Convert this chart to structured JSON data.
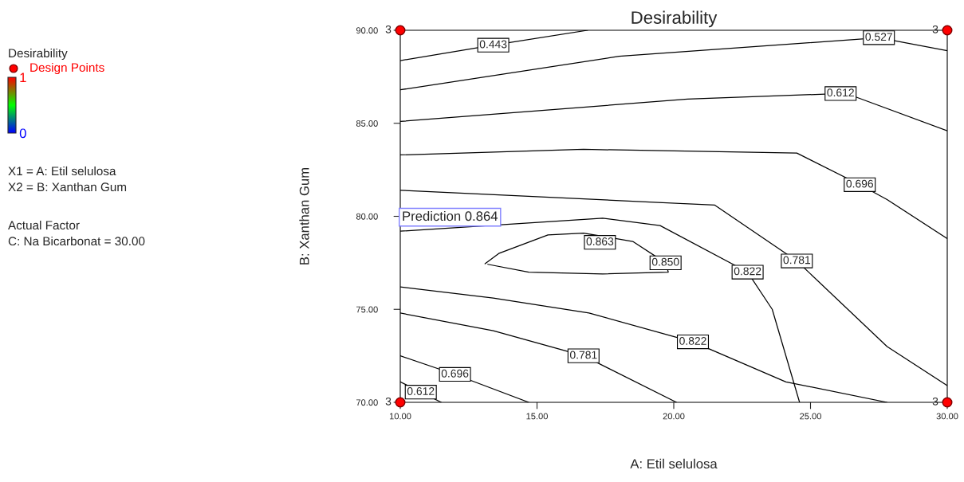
{
  "chart_data": {
    "type": "line",
    "title": "Desirability",
    "xlabel": "A: Etil selulosa",
    "ylabel": "B: Xanthan Gum",
    "xlim": [
      10,
      30
    ],
    "ylim": [
      70,
      90
    ],
    "xticks": [
      {
        "value": 10,
        "label": "10.00"
      },
      {
        "value": 15,
        "label": "15.00"
      },
      {
        "value": 20,
        "label": "20.00"
      },
      {
        "value": 25,
        "label": "25.00"
      },
      {
        "value": 30,
        "label": "30.00"
      }
    ],
    "yticks": [
      {
        "value": 70,
        "label": "70.00"
      },
      {
        "value": 75,
        "label": "75.00"
      },
      {
        "value": 80,
        "label": "80.00"
      },
      {
        "value": 85,
        "label": "85.00"
      },
      {
        "value": 90,
        "label": "90.00"
      }
    ],
    "grid": false,
    "legend": "left",
    "line_style": "solid",
    "legend_title": "Desirability",
    "clim": [
      0,
      1
    ],
    "cticks": [
      0,
      1
    ],
    "series": [
      {
        "name": "0.443",
        "color": "#000000",
        "x": [
          10,
          13.4,
          16.85
        ],
        "values": [
          88.37,
          89.2,
          90
        ]
      },
      {
        "name": "0.527",
        "color": "#000000",
        "x": [
          10,
          18,
          27.5,
          30
        ],
        "values": [
          86.8,
          88.6,
          89.6,
          88.9
        ]
      },
      {
        "name": "0.612",
        "color": "#000000",
        "x": [
          10,
          20.5,
          26.1,
          26.5,
          30
        ],
        "values": [
          85.1,
          86.3,
          86.6,
          86.5,
          84.6
        ]
      },
      {
        "name": "0.696",
        "color": "#000000",
        "x": [
          10,
          16.7,
          24.5,
          26.8,
          27.8,
          30
        ],
        "values": [
          83.3,
          83.6,
          83.4,
          81.7,
          80.9,
          78.8
        ]
      },
      {
        "name": "0.781",
        "color": "#000000",
        "x": [
          10,
          21.5,
          24.5,
          27.8,
          30
        ],
        "values": [
          81.4,
          80.6,
          77.6,
          73.0,
          70.9
        ]
      },
      {
        "name": "0.822",
        "color": "#000000",
        "x": [
          10,
          17.4,
          19.5,
          22.7,
          23.6,
          24.6
        ],
        "values": [
          79.2,
          79.9,
          79.5,
          77.0,
          75.0,
          70
        ]
      },
      {
        "name": "0.850",
        "color": "#000000",
        "x": [
          13.1,
          13.6,
          15.4,
          16.7,
          18.5,
          19.7,
          19.8,
          17.4,
          14.7,
          13.2
        ],
        "values": [
          77.45,
          78.0,
          79.0,
          79.1,
          78.65,
          77.5,
          77.0,
          76.9,
          77.0,
          77.42
        ]
      },
      {
        "name": "0.822",
        "color": "#000000",
        "x": [
          10,
          13.4,
          16.9,
          20.7,
          24.1,
          27.8
        ],
        "values": [
          76.2,
          75.6,
          74.8,
          73.25,
          71.1,
          70
        ]
      },
      {
        "name": "0.781",
        "color": "#000000",
        "x": [
          10,
          13.4,
          16.7,
          20.1
        ],
        "values": [
          74.8,
          73.85,
          72.5,
          70
        ]
      },
      {
        "name": "0.696",
        "color": "#000000",
        "x": [
          10,
          12.0,
          14.7
        ],
        "values": [
          72.5,
          71.5,
          70
        ]
      },
      {
        "name": "0.612",
        "color": "#000000",
        "x": [
          10,
          10.75,
          11.5
        ],
        "values": [
          71.1,
          70.55,
          70
        ]
      },
      {
        "name": "Design Points",
        "type": "scatter",
        "marker": "circle",
        "color": "#ff0000",
        "x": [
          10,
          10,
          30,
          30
        ],
        "values": [
          90,
          70,
          90,
          70
        ]
      }
    ],
    "annotations": [
      {
        "text": "0.863",
        "x": 17.3,
        "y": 78.6
      },
      "Prediction 0.864",
      {
        "text": "3",
        "x": 10,
        "y": 90
      },
      {
        "text": "3",
        "x": 10,
        "y": 70
      },
      {
        "text": "3",
        "x": 30,
        "y": 90
      },
      {
        "text": "3",
        "x": 30,
        "y": 70
      },
      "X1 = A: Etil selulosa",
      "X2 = B: Xanthan Gum",
      "Actual Factor",
      "C: Na Bicarbonat = 30.00"
    ]
  }
}
